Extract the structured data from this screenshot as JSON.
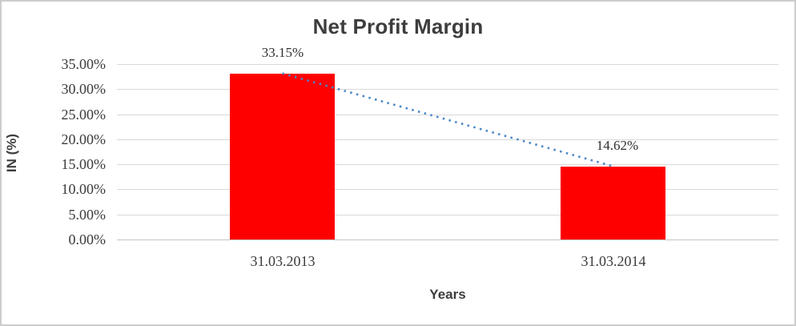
{
  "chart_data": {
    "type": "bar",
    "title": "Net Profit Margin",
    "xlabel": "Years",
    "ylabel": "IN (%)",
    "categories": [
      "31.03.2013",
      "31.03.2014"
    ],
    "values": [
      33.15,
      14.62
    ],
    "data_labels": [
      "33.15%",
      "14.62%"
    ],
    "ylim": [
      0,
      35
    ],
    "ytick_labels": [
      "35.00%",
      "30.00%",
      "25.00%",
      "20.00%",
      "15.00%",
      "10.00%",
      "5.00%",
      "0.00%"
    ],
    "grid": "horizontal",
    "legend": "none",
    "colors": {
      "bar": "#fe0000",
      "trendline": "#4a86c8",
      "gridline": "#d9d9d9",
      "title_text": "#3d3d3d",
      "tick_text": "#3b3b3b"
    },
    "trendline": {
      "style": "dotted",
      "connects": "bar tops (33.15% to 14.62%)"
    }
  }
}
